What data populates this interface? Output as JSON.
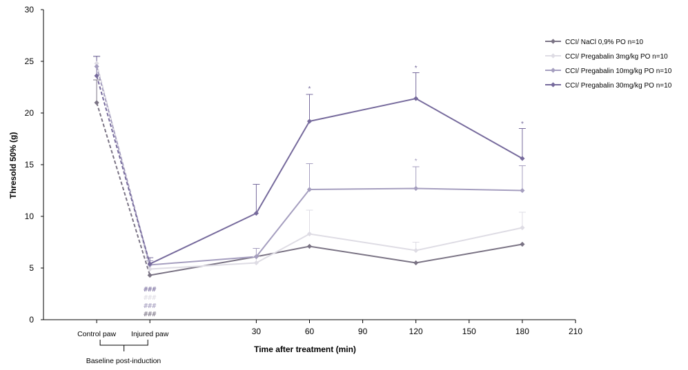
{
  "chart_data": {
    "type": "line",
    "title": "",
    "ylabel": "Thresold 50% (g)",
    "xlabel": "Time after treatment (min)",
    "ylim": [
      0,
      30
    ],
    "yticks": [
      0,
      5,
      10,
      15,
      20,
      25,
      30
    ],
    "xlim": [
      -90,
      210
    ],
    "xticks": [
      30,
      60,
      90,
      120,
      150,
      180,
      210
    ],
    "x_categories_baseline": [
      {
        "x": -60,
        "label": "Control paw"
      },
      {
        "x": -30,
        "label": "Injured paw"
      }
    ],
    "baseline_group_label": "Baseline post-induction",
    "legend_position": "top-right",
    "series": [
      {
        "name": "CCI/ NaCl  0,9% PO n=10",
        "color": "#7a7384",
        "dashed_points": [
          {
            "x": -60,
            "y": 21.0
          },
          {
            "x": -30,
            "y": 4.3
          }
        ],
        "points": [
          {
            "x": -30,
            "y": 4.3,
            "err": 0
          },
          {
            "x": 30,
            "y": 6.1,
            "err": 0
          },
          {
            "x": 60,
            "y": 7.1,
            "err": 0
          },
          {
            "x": 120,
            "y": 5.5,
            "err": 0
          },
          {
            "x": 180,
            "y": 7.3,
            "err": 0
          }
        ],
        "baseline_err": 2.2
      },
      {
        "name": "CCI/ Pregabalin 3mg/kg PO n=10",
        "color": "#dedce4",
        "dashed_points": [
          {
            "x": -60,
            "y": 24.8
          },
          {
            "x": -30,
            "y": 4.9
          }
        ],
        "points": [
          {
            "x": -30,
            "y": 4.9,
            "err": 0.8
          },
          {
            "x": 30,
            "y": 5.5,
            "err": 0.6
          },
          {
            "x": 60,
            "y": 8.3,
            "err": 2.3
          },
          {
            "x": 120,
            "y": 6.7,
            "err": 0.8
          },
          {
            "x": 180,
            "y": 8.9,
            "err": 1.5
          }
        ],
        "baseline_err": 0.6
      },
      {
        "name": "CCI/ Pregabalin 10mg/kg PO n=10",
        "color": "#a59ebf",
        "dashed_points": [
          {
            "x": -60,
            "y": 24.5
          },
          {
            "x": -30,
            "y": 5.3
          }
        ],
        "points": [
          {
            "x": -30,
            "y": 5.3,
            "err": 0.4
          },
          {
            "x": 30,
            "y": 6.1,
            "err": 0.8
          },
          {
            "x": 60,
            "y": 12.6,
            "err": 2.5
          },
          {
            "x": 120,
            "y": 12.7,
            "err": 2.1
          },
          {
            "x": 180,
            "y": 12.5,
            "err": 2.4
          }
        ],
        "baseline_err": 1.0
      },
      {
        "name": "CCI/ Pregabalin 30mg/kg PO n=10",
        "color": "#766a9c",
        "dashed_points": [
          {
            "x": -60,
            "y": 23.6
          },
          {
            "x": -30,
            "y": 5.4
          }
        ],
        "points": [
          {
            "x": -30,
            "y": 5.4,
            "err": 0.6
          },
          {
            "x": 30,
            "y": 10.3,
            "err": 2.8
          },
          {
            "x": 60,
            "y": 19.2,
            "err": 2.6
          },
          {
            "x": 120,
            "y": 21.4,
            "err": 2.5
          },
          {
            "x": 180,
            "y": 15.6,
            "err": 2.9
          }
        ],
        "baseline_err": 1.9
      }
    ],
    "annotations": [
      {
        "text": "*",
        "x": 60,
        "y": 22.4,
        "series": 3
      },
      {
        "text": "*",
        "x": 120,
        "y": 24.4,
        "series": 3
      },
      {
        "text": "*",
        "x": 180,
        "y": 19.0,
        "series": 3
      },
      {
        "text": "*",
        "x": 120,
        "y": 15.4,
        "series": 2
      },
      {
        "text": "###",
        "x": -30,
        "y": 3.0,
        "series": 3
      },
      {
        "text": "###",
        "x": -30,
        "y": 2.2,
        "series": 1
      },
      {
        "text": "###",
        "x": -30,
        "y": 1.4,
        "series": 2
      },
      {
        "text": "###",
        "x": -30,
        "y": 0.6,
        "series": 0
      }
    ]
  }
}
